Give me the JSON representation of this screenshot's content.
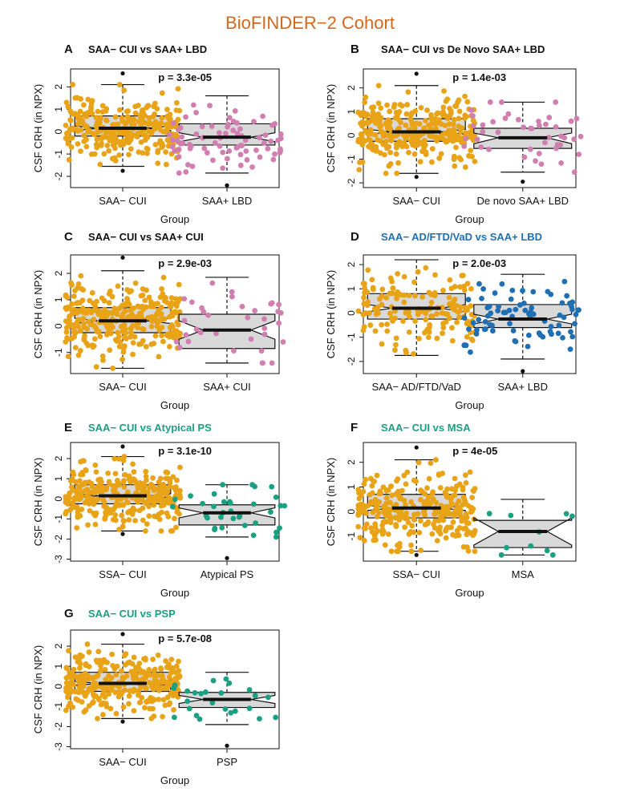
{
  "figure_title": "BioFINDER−2 Cohort",
  "colors": {
    "title": "#d2691e",
    "orange": "#e8a317",
    "pink": "#d07fb0",
    "blue": "#1f6fb2",
    "green": "#1aa082",
    "black": "#111111",
    "box_fill": "#d9d9d9"
  },
  "chart_data": [
    {
      "type": "box",
      "panel": "A",
      "title": "SAA− CUI vs SAA+ LBD",
      "title_color": "black",
      "pvalue": "p = 3.3e-05",
      "xlabel": "Group",
      "ylabel": "CSF CRH (in NPX)",
      "ylim": [
        -2.5,
        2.8
      ],
      "yticks": [
        -2,
        -1,
        0,
        1,
        2
      ],
      "categories": [
        "SAA− CUI",
        "SAA+ LBD"
      ],
      "boxes": [
        {
          "q1": -0.2,
          "median": 0.15,
          "q3": 0.7,
          "notch_low": 0.05,
          "notch_high": 0.25,
          "whisker_low": -1.55,
          "whisker_high": 2.1,
          "outliers": [
            2.6,
            -1.75
          ]
        },
        {
          "q1": -0.6,
          "median": -0.25,
          "q3": 0.35,
          "notch_low": -0.45,
          "notch_high": -0.05,
          "whisker_low": -1.85,
          "whisker_high": 1.6,
          "outliers": [
            -2.4
          ]
        }
      ],
      "point_colors": [
        "orange",
        "pink"
      ],
      "n_points": [
        300,
        80
      ]
    },
    {
      "type": "box",
      "panel": "B",
      "title": "SAA− CUI vs De Novo SAA+ LBD",
      "title_color": "black",
      "pvalue": "p = 1.4e-03",
      "xlabel": "Group",
      "ylabel": "CSF CRH (in NPX)",
      "ylim": [
        -2.2,
        2.8
      ],
      "yticks": [
        -2,
        -1,
        0,
        1,
        2
      ],
      "categories": [
        "SAA− CUI",
        "De novo SAA+ LBD"
      ],
      "boxes": [
        {
          "q1": -0.25,
          "median": 0.15,
          "q3": 0.7,
          "notch_low": 0.05,
          "notch_high": 0.25,
          "whisker_low": -1.6,
          "whisker_high": 2.1,
          "outliers": [
            2.6,
            -1.75
          ]
        },
        {
          "q1": -0.55,
          "median": -0.1,
          "q3": 0.3,
          "notch_low": -0.35,
          "notch_high": 0.1,
          "whisker_low": -1.55,
          "whisker_high": 1.4,
          "outliers": [
            -1.95
          ]
        }
      ],
      "point_colors": [
        "orange",
        "pink"
      ],
      "n_points": [
        300,
        45
      ]
    },
    {
      "type": "box",
      "panel": "C",
      "title": "SAA− CUI vs SAA+ CUI",
      "title_color": "black",
      "pvalue": "p = 2.9e-03",
      "xlabel": "Group",
      "ylabel": "CSF CRH (in NPX)",
      "ylim": [
        -1.8,
        2.7
      ],
      "yticks": [
        -1,
        0,
        1,
        2
      ],
      "categories": [
        "SAA− CUI",
        "SAA+ CUI"
      ],
      "boxes": [
        {
          "q1": -0.25,
          "median": 0.2,
          "q3": 0.7,
          "notch_low": 0.1,
          "notch_high": 0.3,
          "whisker_low": -1.6,
          "whisker_high": 2.1,
          "outliers": [
            2.6
          ]
        },
        {
          "q1": -0.85,
          "median": -0.15,
          "q3": 0.45,
          "notch_low": -0.5,
          "notch_high": 0.2,
          "whisker_low": -1.4,
          "whisker_high": 1.85,
          "outliers": []
        }
      ],
      "point_colors": [
        "orange",
        "pink"
      ],
      "n_points": [
        300,
        35
      ]
    },
    {
      "type": "box",
      "panel": "D",
      "title": "SAA− AD/FTD/VaD vs SAA+ LBD",
      "title_color": "blue",
      "pvalue": "p = 2.0e-03",
      "xlabel": "Group",
      "ylabel": "CSF CRH (in NPX)",
      "ylim": [
        -2.5,
        2.4
      ],
      "yticks": [
        -2,
        -1,
        0,
        1,
        2
      ],
      "categories": [
        "SAA− AD/FTD/VaD",
        "SAA+ LBD"
      ],
      "boxes": [
        {
          "q1": -0.25,
          "median": 0.2,
          "q3": 0.8,
          "notch_low": 0.05,
          "notch_high": 0.35,
          "whisker_low": -1.75,
          "whisker_high": 2.2,
          "outliers": []
        },
        {
          "q1": -0.6,
          "median": -0.25,
          "q3": 0.35,
          "notch_low": -0.45,
          "notch_high": -0.05,
          "whisker_low": -1.9,
          "whisker_high": 1.6,
          "outliers": [
            -2.4
          ]
        }
      ],
      "point_colors": [
        "orange",
        "blue"
      ],
      "n_points": [
        160,
        80
      ]
    },
    {
      "type": "box",
      "panel": "E",
      "title": "SAA− CUI vs Atypical PS",
      "title_color": "green",
      "pvalue": "p = 3.1e-10",
      "xlabel": "Group",
      "ylabel": "CSF CRH (in NPX)",
      "ylim": [
        -3.1,
        2.8
      ],
      "yticks": [
        -3,
        -2,
        -1,
        0,
        1,
        2
      ],
      "categories": [
        "SSA− CUI",
        "Atypical PS"
      ],
      "boxes": [
        {
          "q1": -0.25,
          "median": 0.15,
          "q3": 0.7,
          "notch_low": 0.05,
          "notch_high": 0.25,
          "whisker_low": -1.6,
          "whisker_high": 2.1,
          "outliers": [
            2.6,
            -1.75
          ]
        },
        {
          "q1": -1.3,
          "median": -0.7,
          "q3": -0.3,
          "notch_low": -0.95,
          "notch_high": -0.45,
          "whisker_low": -1.9,
          "whisker_high": 0.7,
          "outliers": [
            -2.95
          ]
        }
      ],
      "point_colors": [
        "orange",
        "green"
      ],
      "n_points": [
        300,
        35
      ]
    },
    {
      "type": "box",
      "panel": "F",
      "title": "SAA− CUI vs MSA",
      "title_color": "green",
      "pvalue": "p = 4e-05",
      "xlabel": "Group",
      "ylabel": "CSF CRH (in NPX)",
      "ylim": [
        -2.0,
        2.8
      ],
      "yticks": [
        -1,
        0,
        1,
        2
      ],
      "categories": [
        "SSA− CUI",
        "MSA"
      ],
      "boxes": [
        {
          "q1": -0.25,
          "median": 0.15,
          "q3": 0.7,
          "notch_low": 0.05,
          "notch_high": 0.25,
          "whisker_low": -1.6,
          "whisker_high": 2.1,
          "outliers": [
            2.6,
            -1.75
          ]
        },
        {
          "q1": -1.45,
          "median": -0.8,
          "q3": -0.35,
          "notch_low": -1.35,
          "notch_high": -0.25,
          "whisker_low": -1.75,
          "whisker_high": 0.5,
          "outliers": []
        }
      ],
      "point_colors": [
        "orange",
        "green"
      ],
      "n_points": [
        300,
        10
      ]
    },
    {
      "type": "box",
      "panel": "G",
      "title": "SAA− CUI vs PSP",
      "title_color": "green",
      "pvalue": "p = 5.7e-08",
      "xlabel": "Group",
      "ylabel": "CSF CRH (in NPX)",
      "ylim": [
        -3.1,
        2.8
      ],
      "yticks": [
        -3,
        -2,
        -1,
        0,
        1,
        2
      ],
      "categories": [
        "SAA− CUI",
        "PSP"
      ],
      "boxes": [
        {
          "q1": -0.25,
          "median": 0.15,
          "q3": 0.7,
          "notch_low": 0.05,
          "notch_high": 0.25,
          "whisker_low": -1.6,
          "whisker_high": 2.1,
          "outliers": [
            2.6,
            -1.75
          ]
        },
        {
          "q1": -1.05,
          "median": -0.65,
          "q3": -0.3,
          "notch_low": -0.85,
          "notch_high": -0.45,
          "whisker_low": -1.9,
          "whisker_high": 0.7,
          "outliers": [
            -2.95
          ]
        }
      ],
      "point_colors": [
        "orange",
        "green"
      ],
      "n_points": [
        300,
        25
      ]
    }
  ]
}
